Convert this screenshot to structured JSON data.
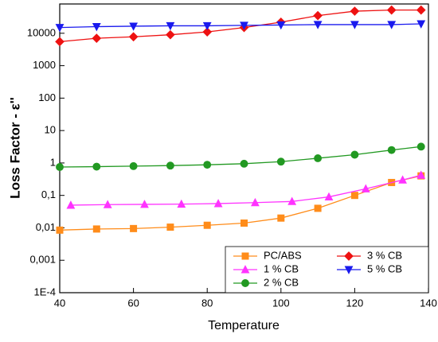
{
  "chart_data": {
    "type": "line",
    "x_label": "Temperature",
    "y_label": "Loss Factor - ε''",
    "ylog": true,
    "xlim": [
      40,
      140
    ],
    "xticks": [
      40,
      60,
      80,
      100,
      120,
      140
    ],
    "ylim": [
      0.0001,
      80000
    ],
    "yticks": [
      {
        "value": 0.0001,
        "label": "1E-4"
      },
      {
        "value": 0.001,
        "label": "0,001"
      },
      {
        "value": 0.01,
        "label": "0,01"
      },
      {
        "value": 0.1,
        "label": "0,1"
      },
      1,
      10,
      100,
      1000,
      10000
    ],
    "legend": "bottom-right",
    "series": [
      {
        "name": "PC/ABS",
        "color": "#ff8c1a",
        "marker": "square",
        "x": [
          40,
          50,
          60,
          70,
          80,
          90,
          100,
          110,
          120,
          130,
          138
        ],
        "values": [
          0.0085,
          0.0092,
          0.0095,
          0.0105,
          0.012,
          0.014,
          0.02,
          0.04,
          0.1,
          0.25,
          0.4
        ]
      },
      {
        "name": "1 % CB",
        "color": "#ff33ff",
        "marker": "triangle-up",
        "x": [
          43,
          53,
          63,
          73,
          83,
          93,
          103,
          113,
          123,
          133,
          138
        ],
        "values": [
          0.05,
          0.052,
          0.053,
          0.054,
          0.056,
          0.06,
          0.065,
          0.09,
          0.16,
          0.3,
          0.42
        ]
      },
      {
        "name": "2 % CB",
        "color": "#229922",
        "marker": "circle",
        "x": [
          40,
          50,
          60,
          70,
          80,
          90,
          100,
          110,
          120,
          130,
          138
        ],
        "values": [
          0.75,
          0.77,
          0.8,
          0.83,
          0.88,
          0.95,
          1.1,
          1.4,
          1.8,
          2.5,
          3.2
        ]
      },
      {
        "name": "3 % CB",
        "color": "#ee1111",
        "marker": "diamond",
        "x": [
          40,
          50,
          60,
          70,
          80,
          90,
          100,
          110,
          120,
          130,
          138
        ],
        "values": [
          5500,
          7000,
          7800,
          9000,
          11000,
          15000,
          22000,
          35000,
          48000,
          52000,
          52000
        ]
      },
      {
        "name": "5 % CB",
        "color": "#1a1aee",
        "marker": "triangle-down",
        "x": [
          40,
          50,
          60,
          70,
          80,
          90,
          100,
          110,
          120,
          130,
          138
        ],
        "values": [
          15000,
          16000,
          16500,
          17000,
          17000,
          17500,
          18000,
          18500,
          18500,
          18500,
          19500
        ]
      }
    ]
  }
}
